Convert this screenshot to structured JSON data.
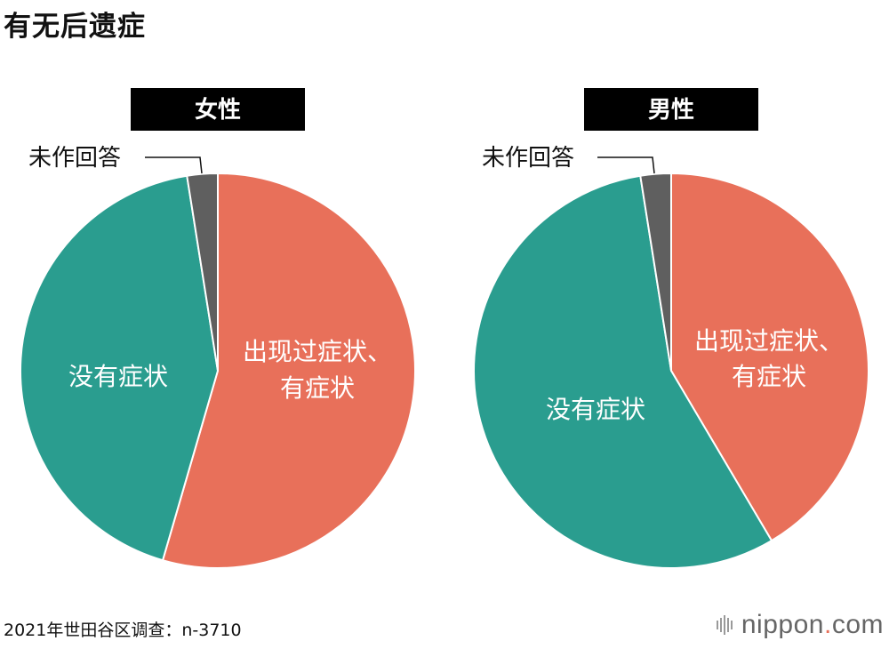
{
  "title": "有无后遗症",
  "footer": {
    "source": "2021年世田谷区调查：n-3710",
    "logo": {
      "brand": "nippon",
      "dot": ".",
      "tld": "com"
    }
  },
  "colors": {
    "symptoms": "#e8705a",
    "no_symptoms": "#2a9d8f",
    "no_answer": "#5f5f5f",
    "header_bg": "#000000",
    "header_text": "#ffffff"
  },
  "chart_data": [
    {
      "type": "pie",
      "title": "女性",
      "slices": [
        {
          "label": "出现过症状、有症状",
          "value": 54.5,
          "color": "#e8705a"
        },
        {
          "label": "没有症状",
          "value": 43.0,
          "color": "#2a9d8f"
        },
        {
          "label": "未作回答",
          "value": 2.5,
          "color": "#5f5f5f"
        }
      ]
    },
    {
      "type": "pie",
      "title": "男性",
      "slices": [
        {
          "label": "出现过症状、有症状",
          "value": 41.5,
          "color": "#e8705a"
        },
        {
          "label": "没有症状",
          "value": 56.0,
          "color": "#2a9d8f"
        },
        {
          "label": "未作回答",
          "value": 2.5,
          "color": "#5f5f5f"
        }
      ]
    }
  ]
}
